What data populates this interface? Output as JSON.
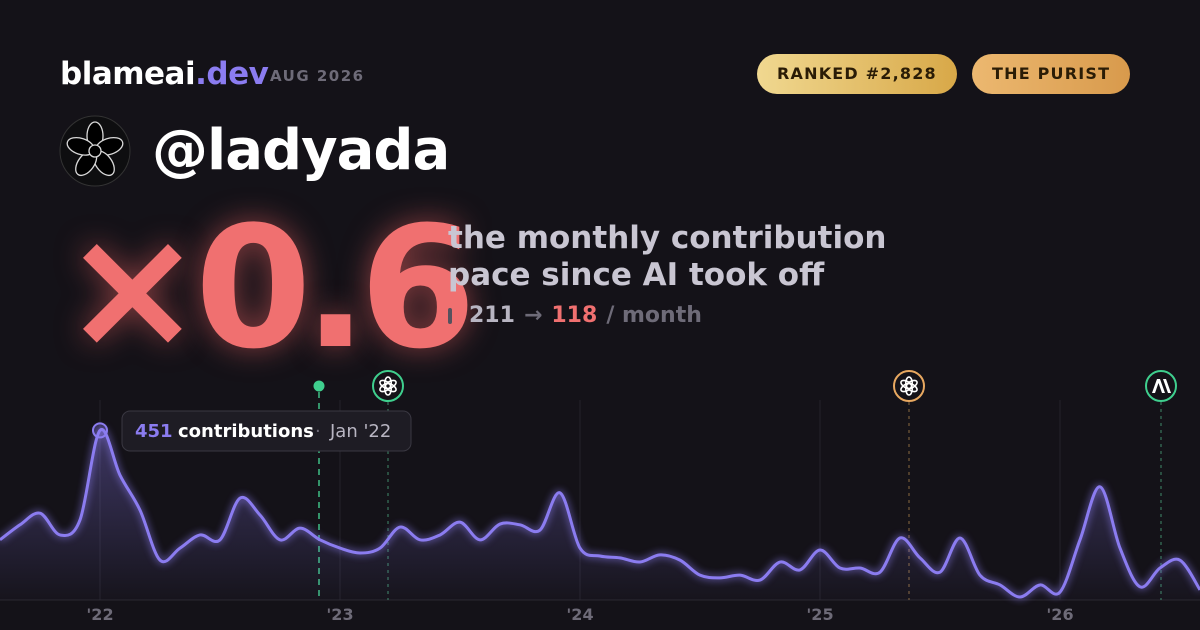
{
  "brand": {
    "name": "blameai",
    "tld": ".dev",
    "date": "AUG 2026"
  },
  "badges": [
    "RANKED #2,828",
    "THE PURIST"
  ],
  "handle": "@ladyada",
  "multiplier": "×0.6",
  "description": [
    "the monthly contribution",
    "pace since AI took off"
  ],
  "pace": {
    "before": 211,
    "arrow": "→",
    "after": 118,
    "unit": "/ month"
  },
  "chart_data": {
    "type": "line",
    "categories": [
      null,
      null,
      null,
      null,
      null,
      "'22",
      null,
      null,
      null,
      null,
      null,
      null,
      null,
      null,
      null,
      null,
      null,
      "'23",
      null,
      null,
      null,
      null,
      null,
      null,
      null,
      null,
      null,
      null,
      null,
      "'24",
      null,
      null,
      null,
      null,
      null,
      null,
      null,
      null,
      null,
      null,
      null,
      "'25",
      null,
      null,
      null,
      null,
      null,
      null,
      null,
      null,
      null,
      null,
      null,
      "'26",
      null,
      null,
      null,
      null,
      null,
      null,
      null
    ],
    "series": [
      {
        "name": "contributions",
        "color": "#8b7cf0",
        "values": [
          160,
          200,
          231,
          173,
          213,
          451,
          332,
          239,
          106,
          138,
          173,
          160,
          271,
          226,
          160,
          191,
          160,
          138,
          125,
          138,
          194,
          160,
          173,
          207,
          160,
          202,
          200,
          186,
          285,
          138,
          117,
          112,
          101,
          120,
          106,
          66,
          59,
          66,
          53,
          101,
          80,
          133,
          85,
          85,
          74,
          165,
          112,
          74,
          165,
          66,
          40,
          8,
          40,
          21,
          160,
          301,
          138,
          35,
          85,
          106,
          27
        ]
      }
    ],
    "ylim": [
      0,
      500
    ],
    "tooltip": {
      "value": 451,
      "label": "contributions",
      "separator": "·",
      "date": "Jan '22"
    }
  }
}
